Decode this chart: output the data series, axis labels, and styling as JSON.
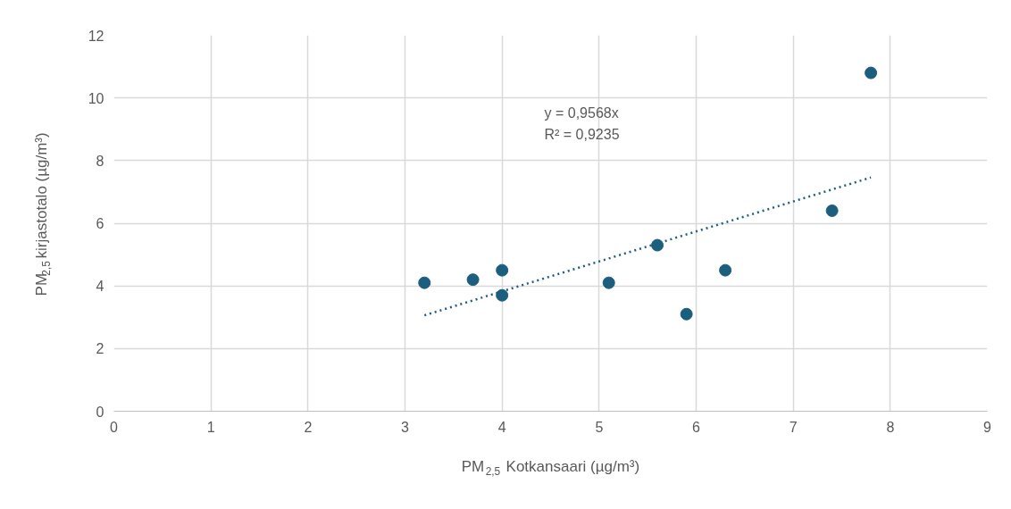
{
  "chart_data": {
    "type": "scatter",
    "xlabel": "PM$_{2,5}$ Kotkansaari (µg/m³)",
    "ylabel": "PM$_{2,5}$ kirjastotalo (µg/m³)",
    "series": [
      {
        "color": "#1b5e7e",
        "marker": "circle",
        "x": [
          3.2,
          3.7,
          4.0,
          4.0,
          5.1,
          5.6,
          5.9,
          6.3,
          7.4,
          7.8
        ],
        "values": [
          4.1,
          4.2,
          4.5,
          3.7,
          4.1,
          5.3,
          3.1,
          4.5,
          6.4,
          10.8
        ]
      },
      {
        "type": "line",
        "color": "#1b5e7e",
        "line_style": "dotted",
        "x": [
          3.2,
          7.8
        ],
        "values": [
          3.06,
          7.46
        ]
      }
    ],
    "annotations": [
      "y = 0,9568x",
      "R² = 0,9235"
    ],
    "xlim": [
      0,
      9
    ],
    "xticks": [
      0,
      1,
      2,
      3,
      4,
      5,
      6,
      7,
      8,
      9
    ],
    "ylim": [
      0,
      12
    ],
    "yticks": [
      0,
      2,
      4,
      6,
      8,
      10,
      12
    ],
    "grid": true
  }
}
